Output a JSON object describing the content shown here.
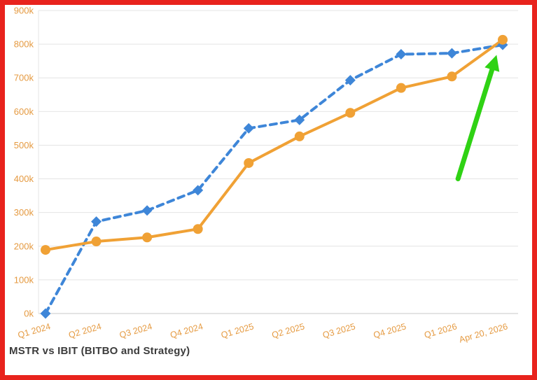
{
  "colors": {
    "frame_border": "#e8231d",
    "grid": "#e4e4e4",
    "axis_line": "#c9c9c9",
    "tick_label": "#e59a41",
    "title": "#3c3c3c",
    "arrow": "#2fd214",
    "series_blue": "#3e86d8",
    "series_orange": "#f0a135"
  },
  "chart_data": {
    "type": "line",
    "title": "MSTR vs IBIT (BITBO and Strategy)",
    "categories": [
      "Q1 2024",
      "Q2 2024",
      "Q3 2024",
      "Q4 2024",
      "Q1 2025",
      "Q2 2025",
      "Q3 2025",
      "Q4 2025",
      "Q1 2026",
      "Apr 20, 2026"
    ],
    "series": [
      {
        "name": "blue-dashed-diamond",
        "color": "#3e86d8",
        "line_style": "dashed",
        "marker": "diamond",
        "values": [
          0,
          273000,
          306000,
          366000,
          550000,
          575000,
          693000,
          770000,
          773000,
          798000
        ]
      },
      {
        "name": "orange-solid-circle",
        "color": "#f0a135",
        "line_style": "solid",
        "marker": "circle",
        "values": [
          189000,
          214000,
          226000,
          251000,
          447000,
          526000,
          596000,
          670000,
          704000,
          813000
        ]
      }
    ],
    "ylim": [
      0,
      900000
    ],
    "y_ticks": [
      "0k",
      "100k",
      "200k",
      "300k",
      "400k",
      "500k",
      "600k",
      "700k",
      "800k",
      "900k"
    ],
    "grid": "horizontal",
    "legend": "none",
    "annotation": {
      "type": "arrow",
      "color": "#2fd214",
      "from": {
        "x_index": 8.12,
        "value": 400000
      },
      "to": {
        "x_index": 8.88,
        "value": 768000
      }
    }
  }
}
